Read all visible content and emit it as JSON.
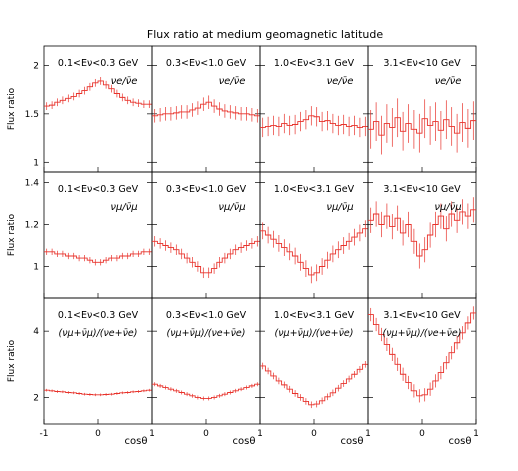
{
  "chart_data": {
    "type": "line",
    "title": "Flux ratio at medium geomagnetic latitude",
    "xlabel": "cosθ",
    "ylabel": "Flux ratio",
    "x_range": [
      -1,
      1
    ],
    "x_ticks": [
      "-1",
      "0",
      "1"
    ],
    "line_color": "#e8322b",
    "energy_bins": [
      "0.1<Eν<0.3 GeV",
      "0.3<Eν<1.0 GeV",
      "1.0<Eν<3.1 GeV",
      "3.1<Eν<10 GeV"
    ],
    "rows": [
      {
        "ratio": "νe/ν̄e",
        "ylim": [
          0.9,
          2.2
        ],
        "y_ticks": [
          "1",
          "1.5",
          "2"
        ],
        "x_bin_centers": [
          -0.95,
          -0.85,
          -0.75,
          -0.65,
          -0.55,
          -0.45,
          -0.35,
          -0.25,
          -0.15,
          -0.05,
          0.05,
          0.15,
          0.25,
          0.35,
          0.45,
          0.55,
          0.65,
          0.75,
          0.85,
          0.95
        ],
        "panels": [
          {
            "values": [
              1.58,
              1.59,
              1.62,
              1.64,
              1.66,
              1.68,
              1.71,
              1.74,
              1.78,
              1.82,
              1.84,
              1.8,
              1.76,
              1.71,
              1.67,
              1.64,
              1.62,
              1.61,
              1.6,
              1.6
            ],
            "err": 0.04
          },
          {
            "values": [
              1.48,
              1.49,
              1.5,
              1.5,
              1.51,
              1.52,
              1.52,
              1.54,
              1.56,
              1.6,
              1.62,
              1.58,
              1.55,
              1.53,
              1.52,
              1.51,
              1.5,
              1.5,
              1.49,
              1.48
            ],
            "err": 0.07
          },
          {
            "values": [
              1.36,
              1.37,
              1.38,
              1.37,
              1.4,
              1.38,
              1.39,
              1.42,
              1.44,
              1.48,
              1.47,
              1.42,
              1.43,
              1.4,
              1.38,
              1.39,
              1.37,
              1.38,
              1.36,
              1.37
            ],
            "err": 0.1
          },
          {
            "values": [
              1.34,
              1.42,
              1.28,
              1.4,
              1.36,
              1.46,
              1.32,
              1.4,
              1.34,
              1.3,
              1.45,
              1.38,
              1.42,
              1.33,
              1.44,
              1.37,
              1.3,
              1.41,
              1.35,
              1.43
            ],
            "err": 0.2
          }
        ]
      },
      {
        "ratio": "νμ/ν̄μ",
        "ylim": [
          0.85,
          1.45
        ],
        "y_ticks": [
          "1",
          "1.2",
          "1.4"
        ],
        "x_bin_centers": [
          -0.95,
          -0.85,
          -0.75,
          -0.65,
          -0.55,
          -0.45,
          -0.35,
          -0.25,
          -0.15,
          -0.05,
          0.05,
          0.15,
          0.25,
          0.35,
          0.45,
          0.55,
          0.65,
          0.75,
          0.85,
          0.95
        ],
        "panels": [
          {
            "values": [
              1.07,
              1.07,
              1.06,
              1.06,
              1.05,
              1.05,
              1.04,
              1.04,
              1.03,
              1.02,
              1.02,
              1.03,
              1.04,
              1.04,
              1.05,
              1.05,
              1.06,
              1.06,
              1.07,
              1.07
            ],
            "err": 0.015
          },
          {
            "values": [
              1.12,
              1.11,
              1.1,
              1.09,
              1.08,
              1.06,
              1.04,
              1.02,
              1.0,
              0.97,
              0.97,
              0.99,
              1.02,
              1.04,
              1.06,
              1.08,
              1.09,
              1.1,
              1.11,
              1.12
            ],
            "err": 0.025
          },
          {
            "values": [
              1.17,
              1.15,
              1.13,
              1.11,
              1.09,
              1.07,
              1.05,
              1.02,
              0.99,
              0.96,
              0.97,
              1.0,
              1.03,
              1.06,
              1.08,
              1.1,
              1.12,
              1.14,
              1.16,
              1.18
            ],
            "err": 0.04
          },
          {
            "values": [
              1.22,
              1.25,
              1.2,
              1.24,
              1.19,
              1.23,
              1.16,
              1.2,
              1.12,
              1.05,
              1.08,
              1.15,
              1.2,
              1.24,
              1.18,
              1.25,
              1.22,
              1.26,
              1.24,
              1.27
            ],
            "err": 0.06
          }
        ]
      },
      {
        "ratio": "(νμ+ν̄μ)/(νe+ν̄e)",
        "ylim": [
          1.2,
          5.0
        ],
        "y_ticks": [
          "2",
          "4"
        ],
        "x_bin_centers": [
          -0.95,
          -0.85,
          -0.75,
          -0.65,
          -0.55,
          -0.45,
          -0.35,
          -0.25,
          -0.15,
          -0.05,
          0.05,
          0.15,
          0.25,
          0.35,
          0.45,
          0.55,
          0.65,
          0.75,
          0.85,
          0.95
        ],
        "panels": [
          {
            "values": [
              2.22,
              2.2,
              2.18,
              2.17,
              2.15,
              2.14,
              2.12,
              2.1,
              2.09,
              2.08,
              2.08,
              2.09,
              2.1,
              2.12,
              2.14,
              2.15,
              2.17,
              2.18,
              2.2,
              2.22
            ],
            "err": 0.04
          },
          {
            "values": [
              2.4,
              2.35,
              2.3,
              2.25,
              2.2,
              2.15,
              2.1,
              2.05,
              2.0,
              1.97,
              1.97,
              2.0,
              2.05,
              2.1,
              2.15,
              2.2,
              2.25,
              2.3,
              2.35,
              2.4
            ],
            "err": 0.06
          },
          {
            "values": [
              2.95,
              2.8,
              2.65,
              2.5,
              2.38,
              2.25,
              2.12,
              2.0,
              1.88,
              1.78,
              1.8,
              1.9,
              2.02,
              2.14,
              2.28,
              2.42,
              2.56,
              2.7,
              2.85,
              3.0
            ],
            "err": 0.1
          },
          {
            "values": [
              4.5,
              4.2,
              3.9,
              3.6,
              3.3,
              3.0,
              2.7,
              2.45,
              2.2,
              2.05,
              2.08,
              2.25,
              2.5,
              2.75,
              3.05,
              3.35,
              3.65,
              3.95,
              4.25,
              4.55
            ],
            "err": 0.2
          }
        ]
      }
    ]
  }
}
